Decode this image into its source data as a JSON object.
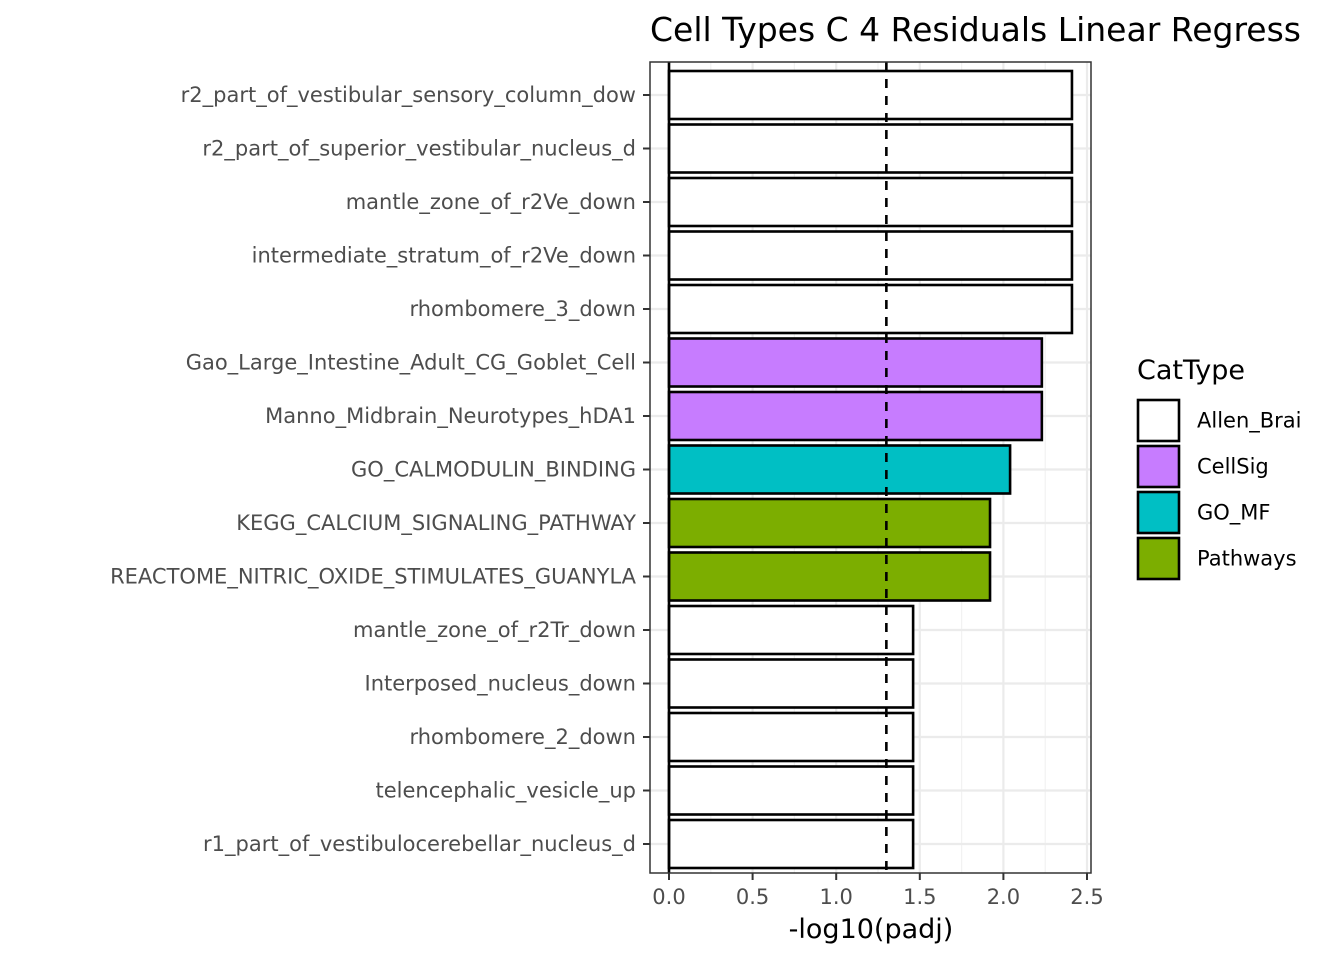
{
  "chart_data": {
    "type": "bar",
    "orientation": "horizontal",
    "title": "Cell Types C 4 Residuals Linear Regress",
    "xlabel": "-log10(padj)",
    "ylabel": "",
    "xlim": [
      0,
      2.5
    ],
    "xticks": [
      0.0,
      0.5,
      1.0,
      1.5,
      2.0,
      2.5
    ],
    "xtick_labels": [
      "0.0",
      "0.5",
      "1.0",
      "1.5",
      "2.0",
      "2.5"
    ],
    "reference_line": {
      "x": 1.3,
      "style": "dashed"
    },
    "grid": true,
    "legend": {
      "title": "CatType",
      "placement": "right",
      "entries": [
        {
          "name": "Allen_Brai",
          "color": "#ffffff"
        },
        {
          "name": "CellSig",
          "color": "#c77cff"
        },
        {
          "name": "GO_MF",
          "color": "#00bfc4"
        },
        {
          "name": "Pathways",
          "color": "#7cae00"
        }
      ]
    },
    "categories": [
      "r2_part_of_vestibular_sensory_column_dow",
      "r2_part_of_superior_vestibular_nucleus_d",
      "mantle_zone_of_r2Ve_down",
      "intermediate_stratum_of_r2Ve_down",
      "rhombomere_3_down",
      "Gao_Large_Intestine_Adult_CG_Goblet_Cell",
      "Manno_Midbrain_Neurotypes_hDA1",
      "GO_CALMODULIN_BINDING",
      "KEGG_CALCIUM_SIGNALING_PATHWAY",
      "REACTOME_NITRIC_OXIDE_STIMULATES_GUANYLA",
      "mantle_zone_of_r2Tr_down",
      "Interposed_nucleus_down",
      "rhombomere_2_down",
      "telencephalic_vesicle_up",
      "r1_part_of_vestibulocerebellar_nucleus_d"
    ],
    "values": [
      2.41,
      2.41,
      2.41,
      2.41,
      2.41,
      2.23,
      2.23,
      2.04,
      1.92,
      1.92,
      1.46,
      1.46,
      1.46,
      1.46,
      1.46
    ],
    "cat_types": [
      "Allen_Brai",
      "Allen_Brai",
      "Allen_Brai",
      "Allen_Brai",
      "Allen_Brai",
      "CellSig",
      "CellSig",
      "GO_MF",
      "Pathways",
      "Pathways",
      "Allen_Brai",
      "Allen_Brai",
      "Allen_Brai",
      "Allen_Brai",
      "Allen_Brai"
    ]
  }
}
